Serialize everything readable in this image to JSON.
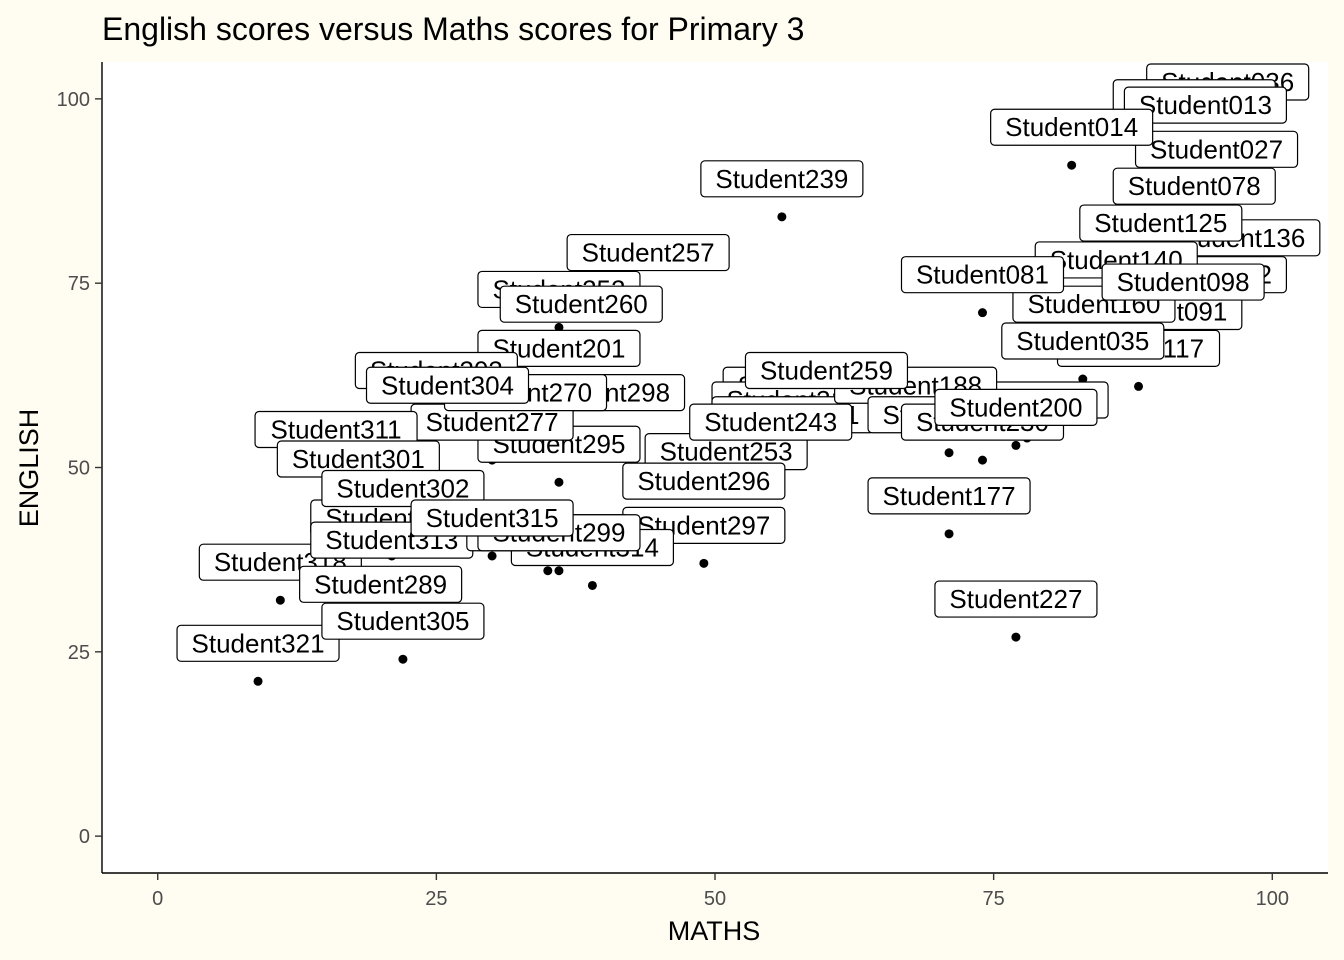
{
  "chart_data": {
    "type": "scatter",
    "title": "English scores versus Maths scores for Primary 3",
    "xlabel": "MATHS",
    "ylabel": "ENGLISH",
    "xlim": [
      -5,
      105
    ],
    "ylim": [
      -5,
      105
    ],
    "x_ticks": [
      0,
      25,
      50,
      75,
      100
    ],
    "y_ticks": [
      0,
      25,
      50,
      75,
      100
    ],
    "grid": false,
    "legend": "none",
    "point_color": "#000000",
    "background_color": "#FFFCF2",
    "panel_color": "#FFFFFF",
    "points": [
      {
        "label": "Student036",
        "x": 96,
        "y": 99
      },
      {
        "label": "Student012",
        "x": 93,
        "y": 95
      },
      {
        "label": "Student013",
        "x": 94,
        "y": 94
      },
      {
        "label": "Student027",
        "x": 95,
        "y": 88
      },
      {
        "label": "Student078",
        "x": 93,
        "y": 83
      },
      {
        "label": "Student136",
        "x": 97,
        "y": 76
      },
      {
        "label": "Student232",
        "x": 94,
        "y": 71
      },
      {
        "label": "Student231",
        "x": 78,
        "y": 54
      },
      {
        "label": "Student117",
        "x": 88,
        "y": 61
      },
      {
        "label": "Student177",
        "x": 71,
        "y": 41
      },
      {
        "label": "Student227",
        "x": 77,
        "y": 27
      },
      {
        "label": "Student239",
        "x": 56,
        "y": 84
      },
      {
        "label": "Student257",
        "x": 44,
        "y": 74
      },
      {
        "label": "Student252",
        "x": 36,
        "y": 69
      },
      {
        "label": "Student253",
        "x": 51,
        "y": 47
      },
      {
        "label": "Student296",
        "x": 49,
        "y": 43
      },
      {
        "label": "Student297",
        "x": 49,
        "y": 37
      },
      {
        "label": "Student312",
        "x": 21,
        "y": 38
      },
      {
        "label": "Student318",
        "x": 11,
        "y": 32
      },
      {
        "label": "Student321",
        "x": 9,
        "y": 21
      },
      {
        "label": "Student305",
        "x": 22,
        "y": 24
      },
      {
        "label": "Student289",
        "x": 20,
        "y": 29
      },
      {
        "label": "Student313",
        "x": 21,
        "y": 35
      },
      {
        "label": "Student314",
        "x": 39,
        "y": 34
      },
      {
        "label": "Student295",
        "x": 36,
        "y": 48
      },
      {
        "label": "Student298",
        "x": 40,
        "y": 55
      },
      {
        "label": "Student277",
        "x": 30,
        "y": 51
      },
      {
        "label": "Student270",
        "x": 33,
        "y": 55
      },
      {
        "label": "Student311",
        "x": 16,
        "y": 50
      },
      {
        "label": "Student301",
        "x": 18,
        "y": 46
      },
      {
        "label": "Student302",
        "x": 22,
        "y": 42
      },
      {
        "label": "Student322",
        "x": 58,
        "y": 56
      },
      {
        "label": "Student310",
        "x": 57,
        "y": 54
      },
      {
        "label": "Student171",
        "x": 57,
        "y": 52
      },
      {
        "label": "Student243",
        "x": 55,
        "y": 51
      },
      {
        "label": "Student188",
        "x": 68,
        "y": 56
      },
      {
        "label": "Student201",
        "x": 36,
        "y": 61
      },
      {
        "label": "Student140",
        "x": 86,
        "y": 73
      },
      {
        "label": "Student091",
        "x": 90,
        "y": 66
      },
      {
        "label": "Student035",
        "x": 83,
        "y": 62
      },
      {
        "label": "Student160",
        "x": 84,
        "y": 67
      },
      {
        "label": "Student098",
        "x": 92,
        "y": 70
      },
      {
        "label": "Student125",
        "x": 90,
        "y": 78
      },
      {
        "label": "Student260",
        "x": 38,
        "y": 67
      },
      {
        "label": "Student081",
        "x": 74,
        "y": 71
      },
      {
        "label": "Student014",
        "x": 82,
        "y": 91
      },
      {
        "label": "Student259",
        "x": 60,
        "y": 58
      },
      {
        "label": "Student303",
        "x": 25,
        "y": 58
      },
      {
        "label": "Student304",
        "x": 26,
        "y": 56
      },
      {
        "label": "Student280",
        "x": 35,
        "y": 36
      },
      {
        "label": "Student299",
        "x": 36,
        "y": 36
      },
      {
        "label": "Student315",
        "x": 30,
        "y": 38
      },
      {
        "label": "Student320",
        "x": 71,
        "y": 52
      },
      {
        "label": "Student230",
        "x": 74,
        "y": 51
      },
      {
        "label": "Student200",
        "x": 77,
        "y": 53
      }
    ]
  }
}
